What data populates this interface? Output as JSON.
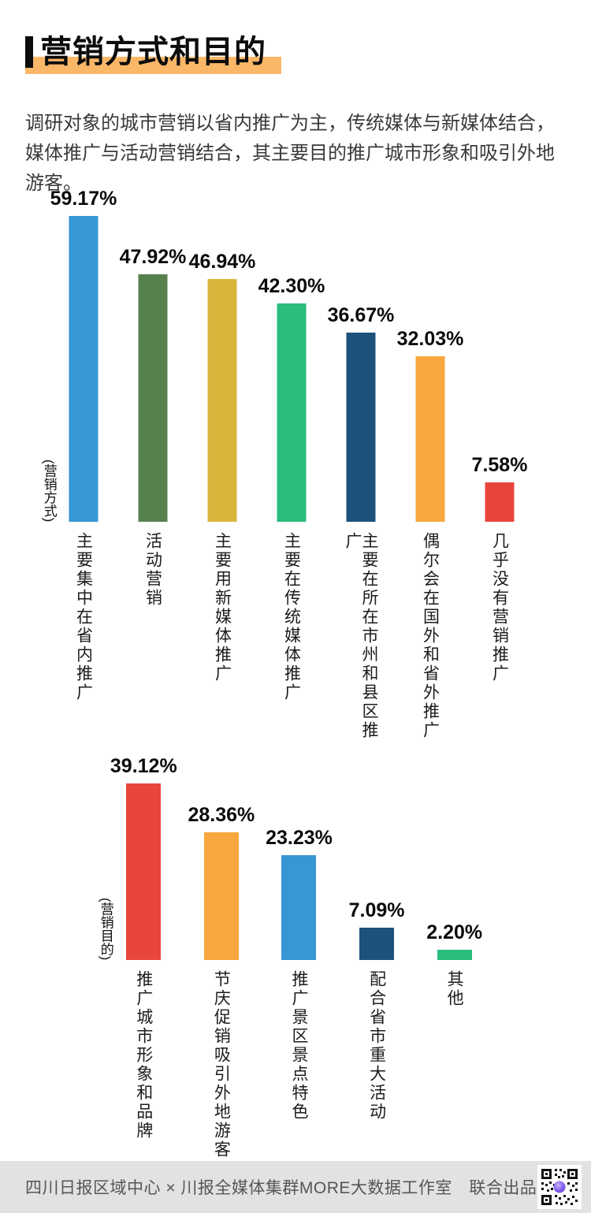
{
  "page": {
    "title": "营销方式和目的",
    "intro": "调研对象的城市营销以省内推广为主，传统媒体与新媒体结合，媒体推广与活动营销结合，其主要目的推广城市形象和吸引外地游客。"
  },
  "colors": {
    "title_highlight_orange": "#fbb768",
    "bar_blue": "#3796d4",
    "bar_olive_green": "#56814d",
    "bar_gold": "#d8b63c",
    "bar_emerald": "#2abd7c",
    "bar_navy": "#1d527c",
    "bar_orange": "#f8a73f",
    "bar_red": "#e8463c",
    "footer_background": "#e2e2e2",
    "qr_center_purple": "#8b64f0"
  },
  "chart_data": [
    {
      "type": "bar",
      "title": "营销方式",
      "ylabel": "(营销方式)",
      "xlabel": "",
      "categories": [
        "主要集中在省内推广",
        "活动营销",
        "主要用新媒体推广",
        "主要在传统媒体推广",
        "主要在所在市州和县区推广",
        "偶尔会在国外和省外推广",
        "几乎没有营销推广"
      ],
      "values": [
        59.17,
        47.92,
        46.94,
        42.3,
        36.67,
        32.03,
        7.58
      ],
      "labels": [
        "59.17%",
        "47.92%",
        "46.94%",
        "42.30%",
        "36.67%",
        "32.03%",
        "7.58%"
      ],
      "colors": [
        "#3796d4",
        "#56814d",
        "#d8b63c",
        "#2abd7c",
        "#1d527c",
        "#f8a73f",
        "#e8463c"
      ],
      "unit": "%",
      "ylim": [
        0,
        64
      ],
      "grid": false,
      "legend": false,
      "category_label_orientation": "vertical"
    },
    {
      "type": "bar",
      "title": "营销目的",
      "ylabel": "(营销目的)",
      "xlabel": "",
      "categories": [
        "推广城市形象和品牌",
        "节庆促销吸引外地游客",
        "推广景区景点特色",
        "配合省市重大活动",
        "其他"
      ],
      "values": [
        39.12,
        28.36,
        23.23,
        7.09,
        2.2
      ],
      "labels": [
        "39.12%",
        "28.36%",
        "23.23%",
        "7.09%",
        "2.20%"
      ],
      "colors": [
        "#e8463c",
        "#f8a73f",
        "#3796d4",
        "#1d527c",
        "#2abd7c"
      ],
      "unit": "%",
      "ylim": [
        0,
        45
      ],
      "grid": false,
      "legend": false,
      "category_label_orientation": "vertical"
    }
  ],
  "footer": {
    "credit": "四川日报区域中心 × 川报全媒体集群MORE大数据工作室　联合出品",
    "qr": "qr-code"
  }
}
